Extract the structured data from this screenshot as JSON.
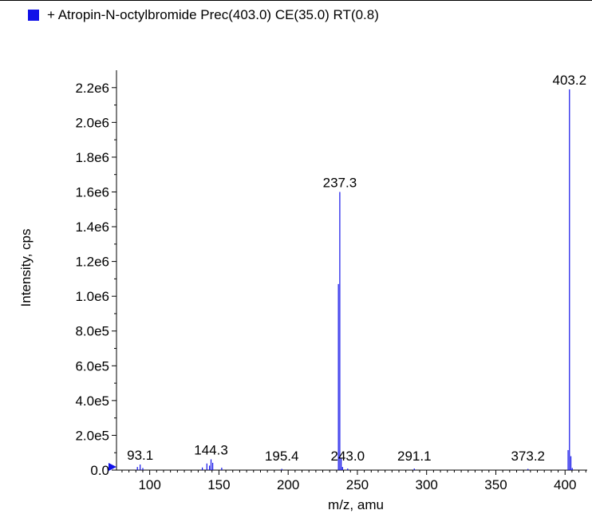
{
  "legend": {
    "label": "+ Atropin-N-octylbromide Prec(403.0) CE(35.0) RT(0.8)",
    "swatch_color": "#1010e8"
  },
  "chart_data": {
    "type": "bar",
    "title": "",
    "xlabel": "m/z, amu",
    "ylabel": "Intensity, cps",
    "xlim": [
      76,
      416
    ],
    "ylim": [
      0,
      2300000.0
    ],
    "x_ticks": [
      100,
      150,
      200,
      250,
      300,
      350,
      400
    ],
    "x_tick_labels": [
      "100",
      "150",
      "200",
      "250",
      "300",
      "350",
      "400"
    ],
    "y_ticks": [
      0,
      200000,
      400000,
      600000,
      800000,
      1000000,
      1200000,
      1400000,
      1600000,
      1800000,
      2000000,
      2200000
    ],
    "y_tick_labels": [
      "0.0",
      "2.0e5",
      "4.0e5",
      "6.0e5",
      "8.0e5",
      "1.0e6",
      "1.2e6",
      "1.4e6",
      "1.6e6",
      "1.8e6",
      "2.0e6",
      "2.2e6"
    ],
    "series": [
      {
        "color": "#1010e8",
        "points": [
          [
            91.1,
            18000
          ],
          [
            93.1,
            32000
          ],
          [
            95.0,
            12000
          ],
          [
            138.0,
            15000
          ],
          [
            141.3,
            38000
          ],
          [
            143.2,
            26000
          ],
          [
            144.3,
            62000
          ],
          [
            145.5,
            42000
          ],
          [
            152.0,
            14000
          ],
          [
            195.4,
            7000
          ],
          [
            236.3,
            1070000
          ],
          [
            237.3,
            1600000
          ],
          [
            238.3,
            70000
          ],
          [
            239.3,
            18000
          ],
          [
            243.0,
            9000
          ],
          [
            291.1,
            9000
          ],
          [
            373.2,
            7000
          ],
          [
            402.2,
            115000
          ],
          [
            403.2,
            2190000
          ],
          [
            404.2,
            80000
          ],
          [
            405.2,
            12000
          ]
        ]
      }
    ],
    "peak_labels": [
      {
        "text": "93.1",
        "x": 93.1
      },
      {
        "text": "144.3",
        "x": 144.3
      },
      {
        "text": "195.4",
        "x": 195.4
      },
      {
        "text": "237.3",
        "x": 237.3
      },
      {
        "text": "243.0",
        "x": 243.0
      },
      {
        "text": "291.1",
        "x": 291.1
      },
      {
        "text": "373.2",
        "x": 373.2
      },
      {
        "text": "403.2",
        "x": 403.2
      }
    ]
  }
}
